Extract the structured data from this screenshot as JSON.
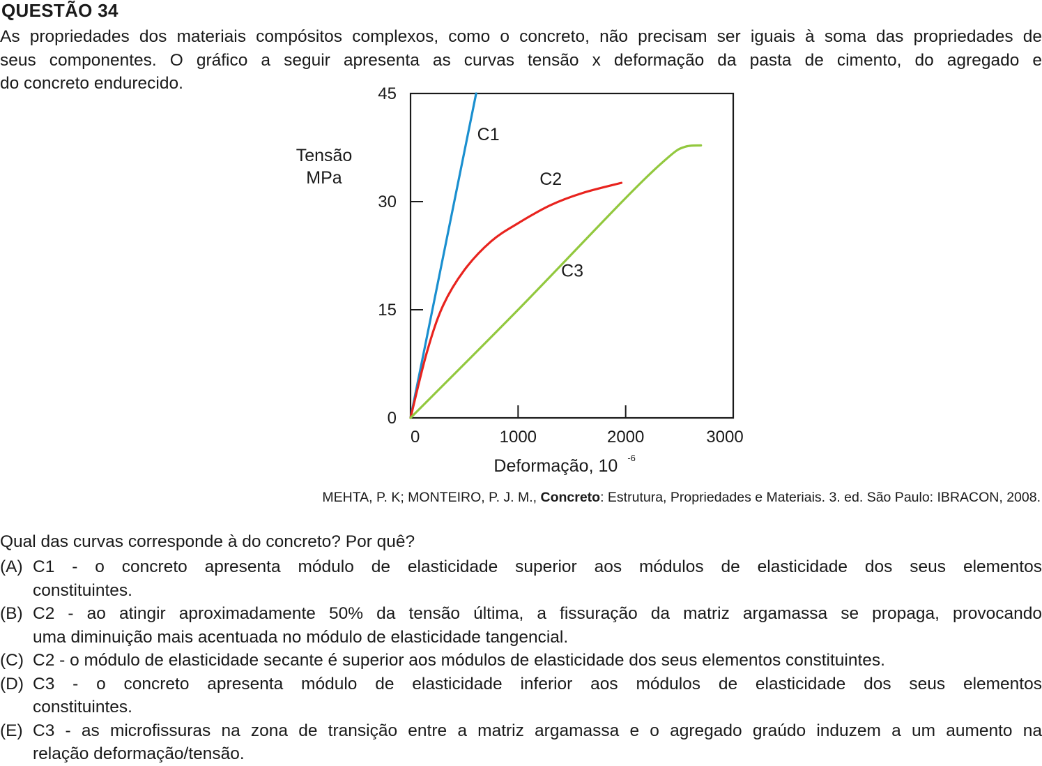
{
  "question": {
    "title": "QUESTÃO 34",
    "intro_lines": [
      "As propriedades dos materiais compósitos complexos, como o concreto, não precisam ser iguais à soma das propriedades de",
      "seus componentes. O gráfico a seguir apresenta as curvas tensão x deformação da pasta de cimento, do agregado e",
      "do concreto endurecido."
    ],
    "caption": {
      "authors": "MEHTA, P. K; MONTEIRO, P. J. M., ",
      "work": "Concreto",
      "rest": ": Estrutura, Propriedades e Materiais. 3. ed. São Paulo: IBRACON, 2008."
    },
    "prompt": "Qual das curvas corresponde à do concreto? Por quê?",
    "options": [
      {
        "letter": "(A)",
        "lines": [
          "C1 - o concreto apresenta módulo de elasticidade superior aos módulos de elasticidade dos seus elementos",
          "constituintes."
        ]
      },
      {
        "letter": "(B)",
        "lines": [
          "C2 - ao atingir aproximadamente 50% da tensão última, a fissuração da matriz argamassa se propaga, provocando",
          "uma diminuição mais acentuada no módulo de elasticidade tangencial."
        ]
      },
      {
        "letter": "(C)",
        "lines": [
          "C2 - o módulo de elasticidade secante é superior aos módulos de elasticidade dos seus elementos constituintes."
        ]
      },
      {
        "letter": "(D)",
        "lines": [
          "C3 - o concreto apresenta módulo de elasticidade inferior aos módulos de elasticidade dos seus elementos",
          "constituintes."
        ]
      },
      {
        "letter": "(E)",
        "lines": [
          "C3 - as microfissuras na zona de transição entre a matriz argamassa e o agregado graúdo induzem a um aumento na",
          "relação deformação/tensão."
        ]
      }
    ]
  },
  "chart_data": {
    "type": "line",
    "title": "",
    "ylabel_lines": [
      "Tensão",
      "MPa"
    ],
    "xlabel": "Deformação, 10",
    "xlabel_exp": "-6",
    "xlim": [
      0,
      3000
    ],
    "ylim": [
      0,
      45
    ],
    "x_ticks": [
      0,
      1000,
      2000,
      3000
    ],
    "x_tick_labels": [
      "0",
      "1000",
      "2000",
      "3000"
    ],
    "y_ticks": [
      0,
      15,
      30,
      45
    ],
    "y_tick_labels": [
      "0",
      "15",
      "30",
      "45"
    ],
    "grid": false,
    "series": [
      {
        "name": "C1",
        "color": "#1a8fcf",
        "points": [
          [
            0,
            0
          ],
          [
            610,
            45
          ]
        ]
      },
      {
        "name": "C2",
        "color": "#e8231e",
        "points": [
          [
            0,
            0
          ],
          [
            150,
            9
          ],
          [
            300,
            15.5
          ],
          [
            500,
            20.5
          ],
          [
            750,
            24.5
          ],
          [
            1000,
            27
          ],
          [
            1300,
            29.5
          ],
          [
            1600,
            31.2
          ],
          [
            1960,
            32.6
          ]
        ]
      },
      {
        "name": "C3",
        "color": "#92c83e",
        "points": [
          [
            0,
            0
          ],
          [
            1000,
            15
          ],
          [
            2000,
            30.5
          ],
          [
            2400,
            36.2
          ],
          [
            2550,
            37.6
          ],
          [
            2700,
            37.8
          ]
        ]
      }
    ]
  }
}
